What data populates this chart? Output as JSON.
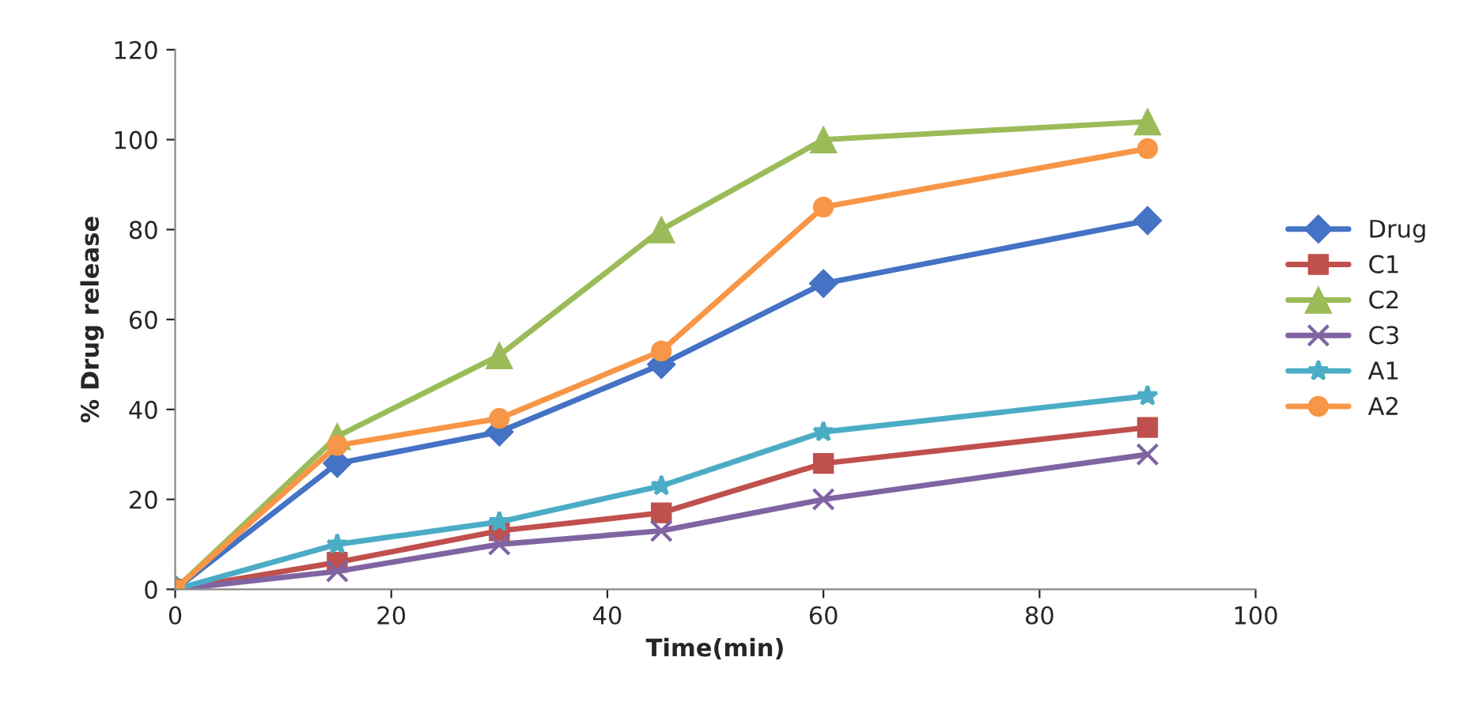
{
  "chart_data": {
    "type": "line",
    "xlabel": "Time(min)",
    "ylabel": "% Drug release",
    "x": [
      0,
      15,
      30,
      45,
      60,
      90
    ],
    "xlim": [
      0,
      100
    ],
    "xticks": [
      0,
      20,
      40,
      60,
      80,
      100
    ],
    "ylim": [
      0,
      120
    ],
    "yticks": [
      0,
      20,
      40,
      60,
      80,
      100,
      120
    ],
    "grid": false,
    "legend": "right",
    "line_style": "solid",
    "series": [
      {
        "name": "Drug",
        "color": "#4472c4",
        "marker": "diamond",
        "values": [
          0,
          28,
          35,
          50,
          68,
          82
        ]
      },
      {
        "name": "C1",
        "color": "#c0504d",
        "marker": "square",
        "values": [
          0,
          6,
          13,
          17,
          28,
          36
        ]
      },
      {
        "name": "C2",
        "color": "#9bbb59",
        "marker": "triangle",
        "values": [
          0,
          34,
          52,
          80,
          100,
          104
        ]
      },
      {
        "name": "C3",
        "color": "#8064a2",
        "marker": "cross",
        "values": [
          0,
          4,
          10,
          13,
          20,
          30
        ]
      },
      {
        "name": "A1",
        "color": "#4bacc6",
        "marker": "star",
        "values": [
          0,
          10,
          15,
          23,
          35,
          43
        ]
      },
      {
        "name": "A2",
        "color": "#f79646",
        "marker": "circle",
        "values": [
          0,
          32,
          38,
          53,
          85,
          98
        ]
      }
    ]
  }
}
